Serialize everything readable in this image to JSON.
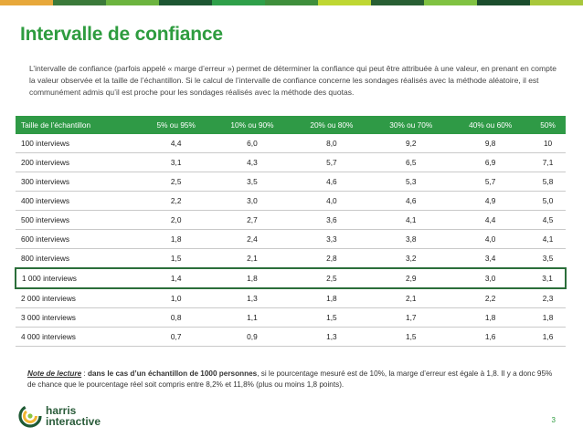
{
  "colors": {
    "topbar": [
      "#e7a83b",
      "#3b7a3a",
      "#6cb43f",
      "#1d5632",
      "#2fa04a",
      "#3f8f3c",
      "#bfd732",
      "#285f33",
      "#80c242",
      "#1b4d2c",
      "#a8c73b"
    ],
    "accent_green": "#2e9c3f",
    "header_green": "#2f9a46",
    "highlight_border": "#2b6e3a"
  },
  "title": "Intervalle de confiance",
  "intro": "L’intervalle de confiance (parfois appelé « marge d’erreur ») permet de déterminer la confiance qui peut être attribuée à une valeur, en prenant en compte la valeur observée et la taille de l’échantillon. Si le calcul de l’intervalle de confiance concerne les sondages réalisés avec la méthode aléatoire, il est communément admis qu’il est proche pour les sondages réalisés avec la méthode des quotas.",
  "table": {
    "headers": [
      "Taille de l’échantillon",
      "5% ou 95%",
      "10% ou 90%",
      "20% ou 80%",
      "30% ou 70%",
      "40% ou 60%",
      "50%"
    ],
    "rows": [
      [
        "100 interviews",
        "4,4",
        "6,0",
        "8,0",
        "9,2",
        "9,8",
        "10"
      ],
      [
        "200 interviews",
        "3,1",
        "4,3",
        "5,7",
        "6,5",
        "6,9",
        "7,1"
      ],
      [
        "300 interviews",
        "2,5",
        "3,5",
        "4,6",
        "5,3",
        "5,7",
        "5,8"
      ],
      [
        "400 interviews",
        "2,2",
        "3,0",
        "4,0",
        "4,6",
        "4,9",
        "5,0"
      ],
      [
        "500 interviews",
        "2,0",
        "2,7",
        "3,6",
        "4,1",
        "4,4",
        "4,5"
      ],
      [
        "600 interviews",
        "1,8",
        "2,4",
        "3,3",
        "3,8",
        "4,0",
        "4,1"
      ],
      [
        "800 interviews",
        "1,5",
        "2,1",
        "2,8",
        "3,2",
        "3,4",
        "3,5"
      ],
      [
        "1 000 interviews",
        "1,4",
        "1,8",
        "2,5",
        "2,9",
        "3,0",
        "3,1"
      ],
      [
        "2 000 interviews",
        "1,0",
        "1,3",
        "1,8",
        "2,1",
        "2,2",
        "2,3"
      ],
      [
        "3 000 interviews",
        "0,8",
        "1,1",
        "1,5",
        "1,7",
        "1,8",
        "1,8"
      ],
      [
        "4 000 interviews",
        "0,7",
        "0,9",
        "1,3",
        "1,5",
        "1,6",
        "1,6"
      ]
    ],
    "highlighted_row": "1 000 interviews"
  },
  "note": {
    "label": "Note de lecture",
    "sep": " : ",
    "bold_part": "dans le cas d’un échantillon de 1000 personnes",
    "rest": ", si le pourcentage mesuré est de 10%, la marge d’erreur est égale à 1,8. Il y a donc 95% de chance que le pourcentage réel soit compris entre 8,2% et 11,8% (plus ou moins 1,8 points)."
  },
  "logo": {
    "line1": "harris",
    "line2": "interactive",
    "icon": "harris-swirl-logo-icon"
  },
  "page_number": "3"
}
